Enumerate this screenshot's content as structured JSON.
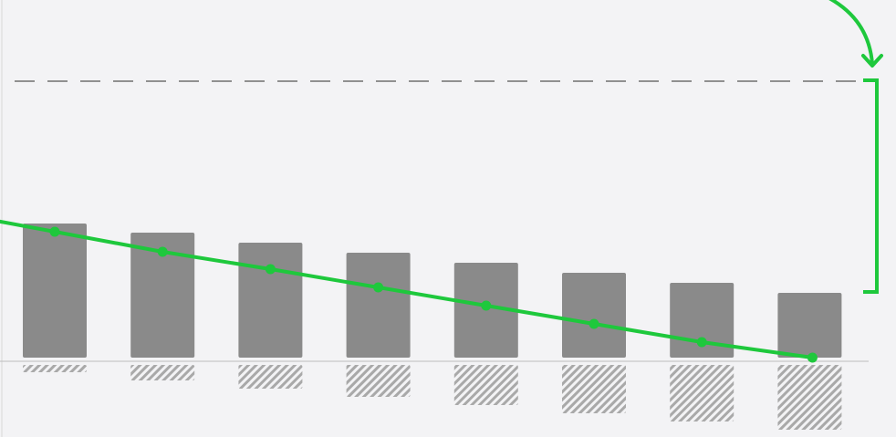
{
  "colors": {
    "background": "#f3f3f5",
    "bar_positive": "#8a8a8a",
    "bar_negative_hatch": "#a9a9a9",
    "trend_line": "#1ec83c",
    "reference_line": "#555555",
    "axis": "#bdbdbd"
  },
  "chart_data": {
    "type": "bar",
    "categories": [
      "",
      "",
      "",
      "",
      "",
      "",
      "",
      ""
    ],
    "series": [
      {
        "values": [
          151,
          141,
          130,
          119,
          108,
          97,
          86,
          75
        ]
      },
      {
        "values": [
          -12,
          -21,
          -30,
          -39,
          -48,
          -57,
          -66,
          -75
        ]
      }
    ],
    "trend_line": [
      142,
      120,
      101,
      81,
      61,
      41,
      21,
      0
    ],
    "reference_line_value": 307,
    "ylim": [
      -80,
      400
    ],
    "grid": false,
    "legend": "none",
    "annotations": {
      "reference_line_style": "dashed",
      "bracket_from_reference_to_last_bar": true,
      "curved_arrow_to_reference": true,
      "negative_bars_hatched": true
    }
  }
}
